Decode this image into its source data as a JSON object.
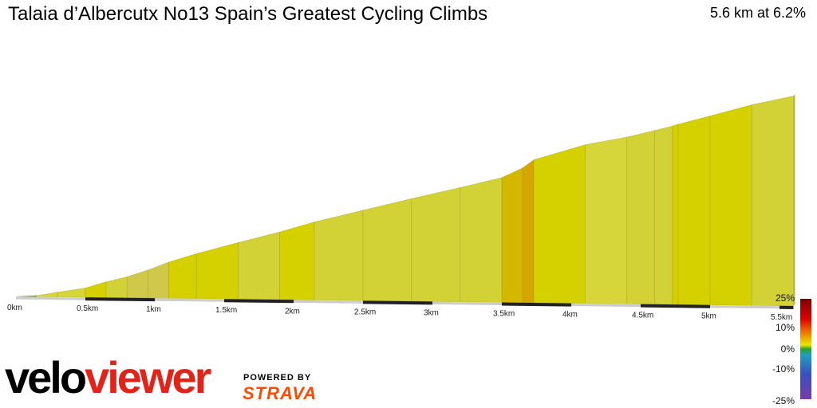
{
  "header": {
    "title": "Talaia d’Albercutx No13 Spain’s Greatest Cycling Climbs",
    "summary": "5.6 km at 6.2%"
  },
  "branding": {
    "logo_part1": "velo",
    "logo_part2": "viewer",
    "powered_by": "POWERED BY",
    "strava": "STRAVA"
  },
  "colors": {
    "logo_red": "#e2231a",
    "strava_orange": "#fc4c02",
    "base_line": "#cccccc",
    "km_band": "#222222"
  },
  "chart_data": {
    "type": "area",
    "title": "Talaia d’Albercutx No13 Spain’s Greatest Cycling Climbs",
    "xlabel": "",
    "ylabel": "",
    "x_unit": "km",
    "xlim": [
      0,
      5.6
    ],
    "x_ticks": [
      "0km",
      "0.5km",
      "1km",
      "1.5km",
      "2km",
      "2.5km",
      "3km",
      "3.5km",
      "4km",
      "4.5km",
      "5km",
      "5.5km"
    ],
    "distance_km": [
      0,
      0.15,
      0.3,
      0.5,
      0.65,
      0.8,
      0.95,
      1.1,
      1.3,
      1.6,
      1.9,
      2.15,
      2.5,
      2.85,
      3.2,
      3.5,
      3.65,
      3.73,
      4.1,
      4.4,
      4.6,
      4.73,
      4.77,
      5.0,
      5.3,
      5.6
    ],
    "elevation_rel_m": [
      0,
      2,
      8,
      16,
      27,
      36,
      48,
      62,
      77,
      97,
      116,
      134,
      155,
      176,
      196,
      214,
      231,
      245,
      272,
      286,
      298,
      306,
      309,
      324,
      344,
      360
    ],
    "gradient_percent": [
      1.3,
      4.0,
      4.0,
      7.3,
      6.0,
      8.0,
      9.3,
      7.5,
      6.7,
      6.3,
      7.2,
      6.0,
      6.0,
      5.7,
      6.0,
      11.3,
      17.5,
      7.3,
      4.7,
      6.0,
      6.2,
      7.5,
      6.5,
      6.7,
      5.3
    ],
    "gradient_scale": {
      "labels": [
        "25%",
        "10%",
        "0%",
        "-10%",
        "-25%"
      ],
      "values": [
        25,
        10,
        0,
        -10,
        -25
      ]
    },
    "grid": false
  }
}
